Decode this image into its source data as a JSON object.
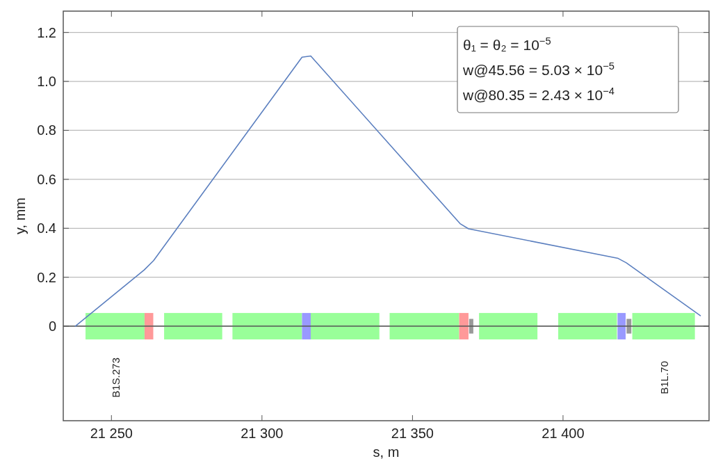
{
  "chart_data": {
    "type": "line",
    "xlabel": "s, m",
    "ylabel": "y, mm",
    "xlim": [
      21234,
      21448.5
    ],
    "ylim": [
      -0.386,
      1.287
    ],
    "xticks": [
      {
        "value": 21250,
        "label": "21 250"
      },
      {
        "value": 21300,
        "label": "21 300"
      },
      {
        "value": 21350,
        "label": "21 350"
      },
      {
        "value": 21400,
        "label": "21 400"
      }
    ],
    "yticks": [
      0,
      0.2,
      0.4,
      0.6,
      0.8,
      {
        "value": 1,
        "label": "1.0"
      },
      1.2
    ],
    "grid": "y",
    "marker": "none",
    "line_style": "solid",
    "series": [
      {
        "color": "#5b7fbf",
        "x": [
          21238,
          21260.9,
          21264,
          21313.3,
          21316.2,
          21365.8,
          21368.6,
          21418.3,
          21421,
          21445.6
        ],
        "values": [
          0,
          0.23,
          0.268,
          1.099,
          1.104,
          0.419,
          0.398,
          0.277,
          0.259,
          0.043
        ]
      }
    ],
    "ref_lines": [
      {
        "axis": "y",
        "value": 0,
        "color": "#555555"
      }
    ],
    "annotations": [
      "θ₁ = θ₂ = 10$^{−5}$",
      "w@45.56 = 5.03 × 10$^{−5}$",
      "w@80.35 = 2.43 × 10$^{−4}$",
      "B1S.273",
      "B1L.70"
    ]
  }
}
